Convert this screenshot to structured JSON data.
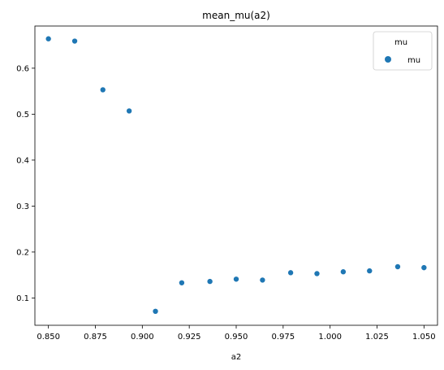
{
  "chart_data": {
    "type": "scatter",
    "title": "mean_mu(a2)",
    "xlabel": "a2",
    "ylabel": "",
    "xlim": [
      0.8428,
      1.0572
    ],
    "ylim": [
      0.0406,
      0.6918
    ],
    "xticks": [
      0.85,
      0.875,
      0.9,
      0.925,
      0.95,
      0.975,
      1.0,
      1.025,
      1.05
    ],
    "xtick_labels": [
      "0.850",
      "0.875",
      "0.900",
      "0.925",
      "0.950",
      "0.975",
      "1.000",
      "1.025",
      "1.050"
    ],
    "yticks": [
      0.1,
      0.2,
      0.3,
      0.4,
      0.5,
      0.6
    ],
    "ytick_labels": [
      "0.1",
      "0.2",
      "0.3",
      "0.4",
      "0.5",
      "0.6"
    ],
    "grid": false,
    "legend": {
      "title": "mu",
      "placement": "top-right",
      "entries": [
        "mu"
      ]
    },
    "series": [
      {
        "name": "mu",
        "color": "#1f77b4",
        "x": [
          0.85,
          0.864,
          0.879,
          0.893,
          0.907,
          0.921,
          0.936,
          0.95,
          0.964,
          0.979,
          0.993,
          1.007,
          1.021,
          1.036,
          1.05
        ],
        "y": [
          0.664,
          0.659,
          0.553,
          0.507,
          0.071,
          0.133,
          0.136,
          0.141,
          0.139,
          0.155,
          0.153,
          0.157,
          0.159,
          0.168,
          0.166
        ]
      }
    ]
  }
}
